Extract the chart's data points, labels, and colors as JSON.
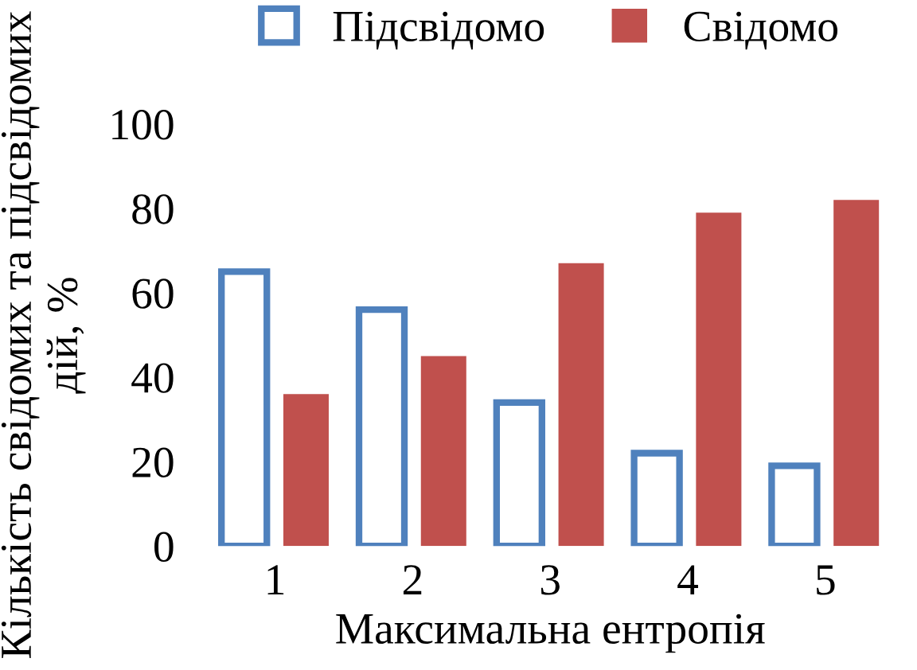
{
  "chart_data": {
    "type": "bar",
    "xlabel": "Максимальна ентропія",
    "ylabel": "Кількість свідомих та підсвідомих дій, %",
    "categories": [
      "1",
      "2",
      "3",
      "4",
      "5"
    ],
    "series": [
      {
        "name": "Підсвідомо",
        "color": "#4f81bd",
        "values": [
          65,
          56,
          34,
          22,
          19
        ]
      },
      {
        "name": "Свідомо",
        "color": "#c0504d",
        "values": [
          36,
          45,
          67,
          79,
          82
        ]
      }
    ],
    "ylim": [
      0,
      100
    ],
    "yticks": [
      0,
      20,
      40,
      60,
      80,
      100
    ],
    "grid": false,
    "legend": "top"
  }
}
